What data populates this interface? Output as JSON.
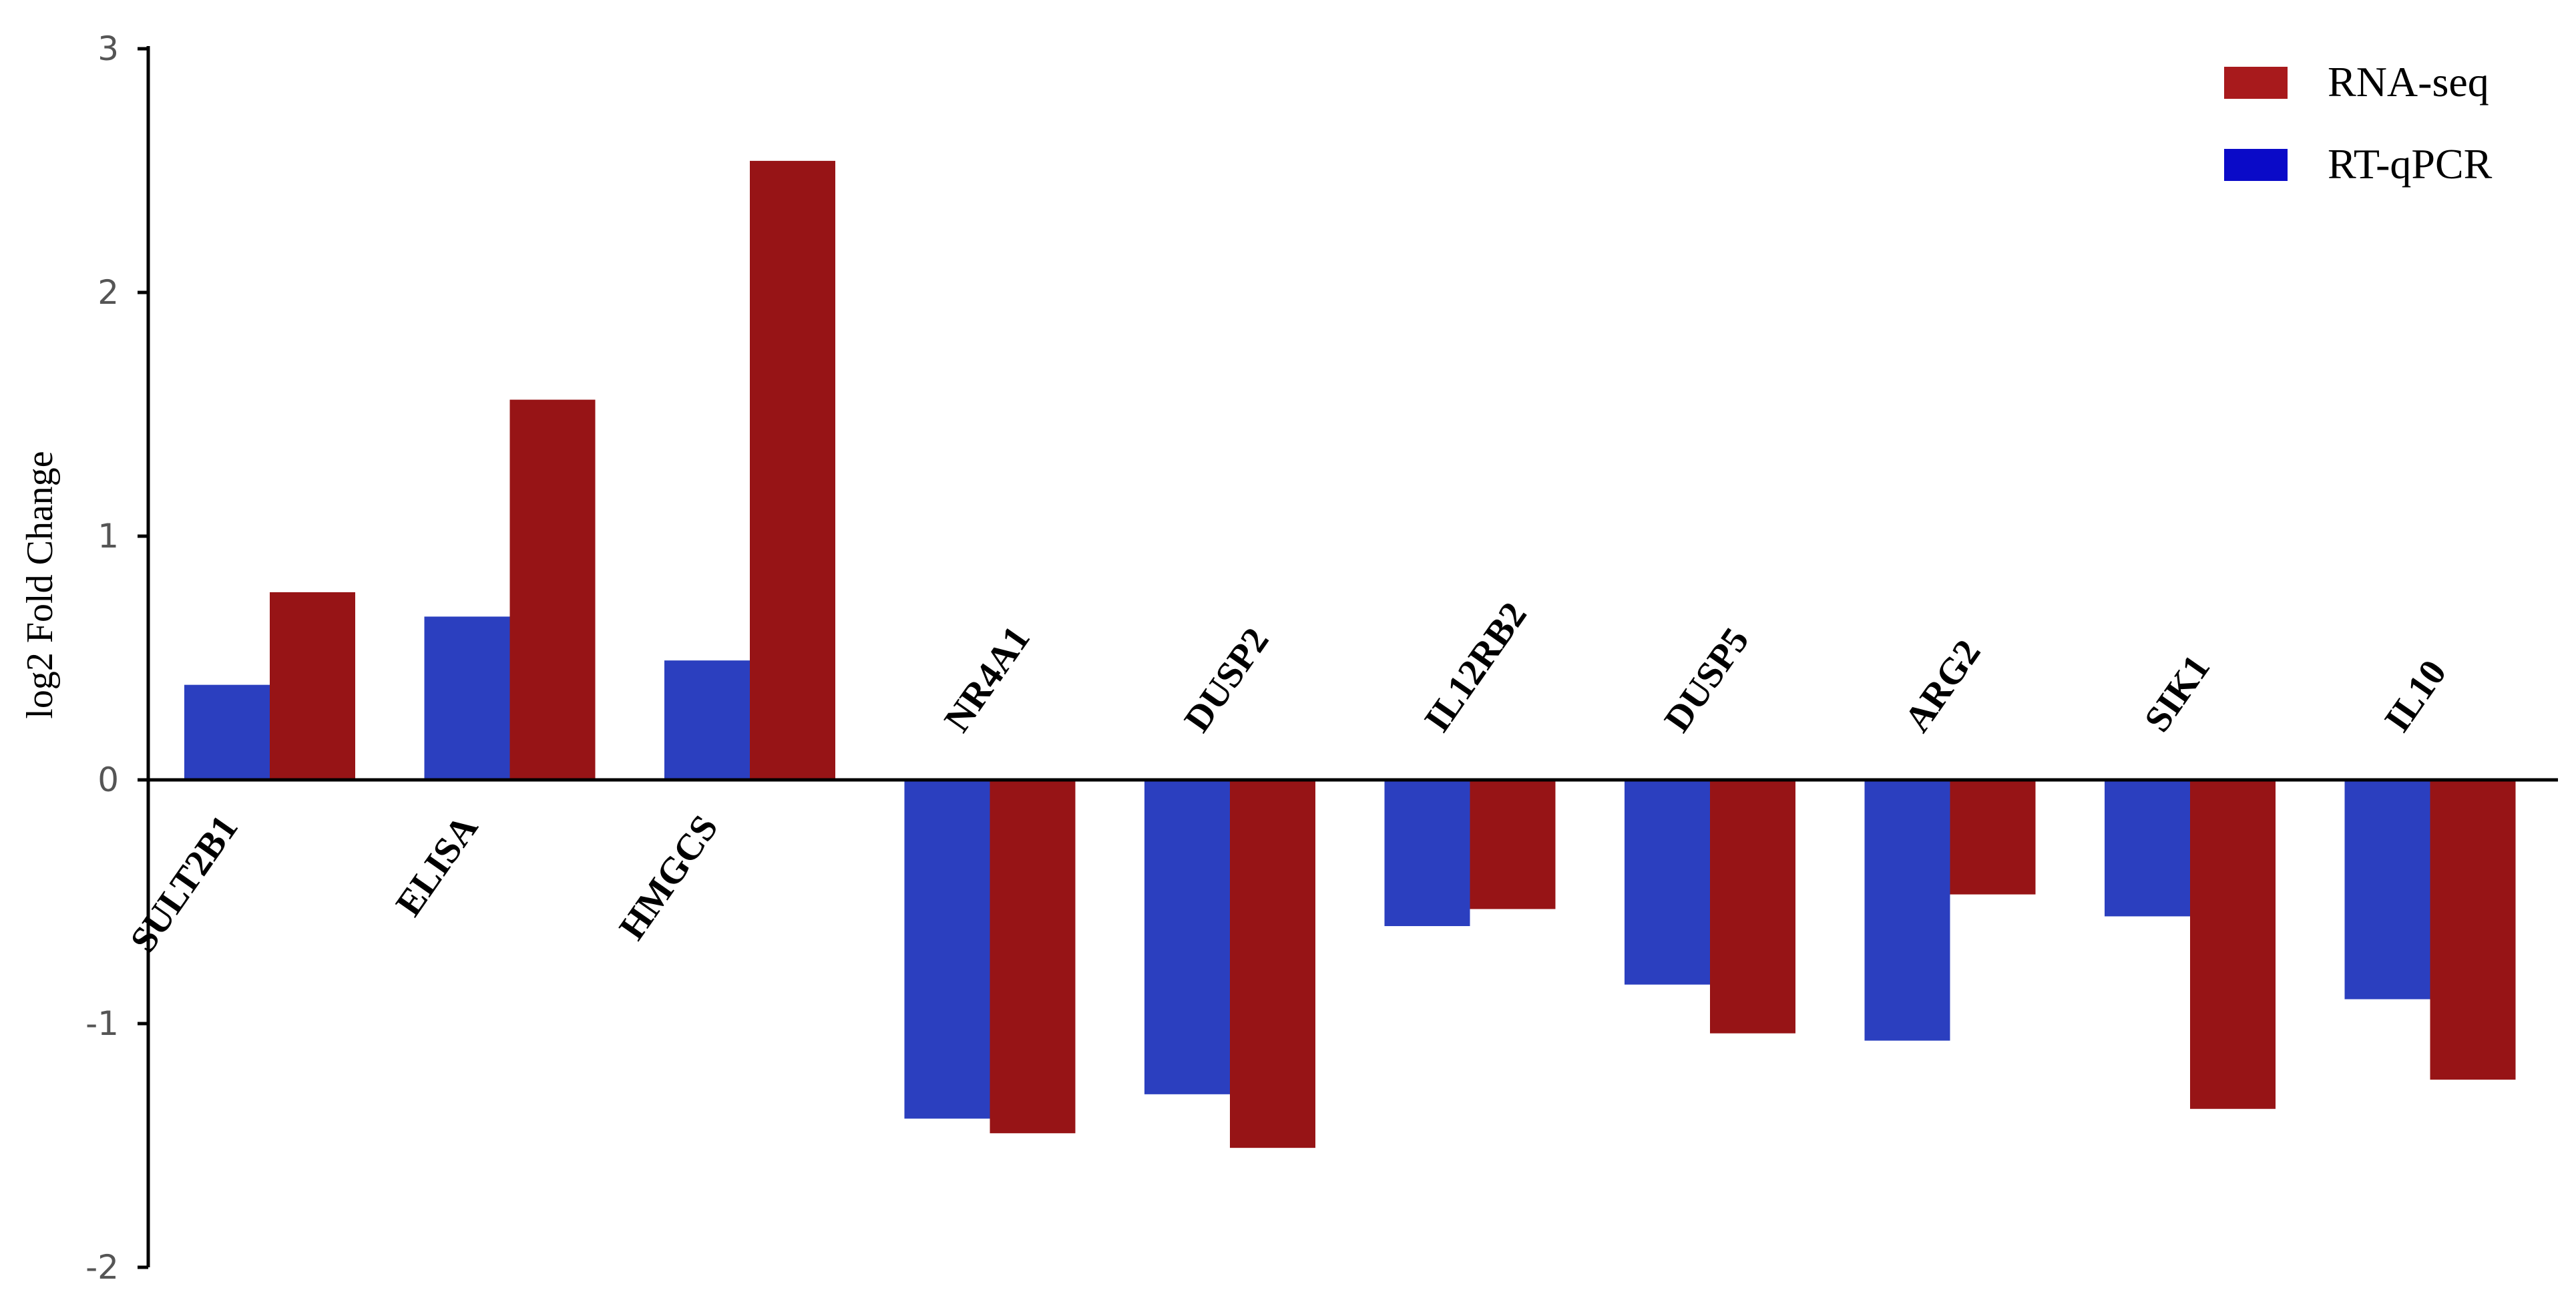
{
  "chart_data": {
    "type": "bar",
    "categories": [
      "SULT2B1",
      "ELISA",
      "HMGCS",
      "NR4A1",
      "DUSP2",
      "IL12RB2",
      "DUSP5",
      "ARG2",
      "SIK1",
      "IL10"
    ],
    "series": [
      {
        "name": "RT-qPCR",
        "color": "#2b3fbf",
        "legend_color": "#0a0ac8",
        "values": [
          0.39,
          0.67,
          0.49,
          -1.39,
          -1.29,
          -0.6,
          -0.84,
          -1.07,
          -0.56,
          -0.9
        ]
      },
      {
        "name": "RNA-seq",
        "color": "#971416",
        "legend_color": "#a81a1c",
        "values": [
          0.77,
          1.56,
          2.54,
          -1.45,
          -1.51,
          -0.53,
          -1.04,
          -0.47,
          -1.35,
          -1.23
        ]
      }
    ],
    "title": "",
    "xlabel": "",
    "ylabel": "log2  Fold Change",
    "ylim": [
      -2,
      3
    ],
    "yticks": [
      "3",
      "2",
      "1",
      "0",
      "-1",
      "-2"
    ],
    "grid": false,
    "legend_position": "top-right",
    "legend_order": [
      "RNA-seq",
      "RT-qPCR"
    ]
  }
}
